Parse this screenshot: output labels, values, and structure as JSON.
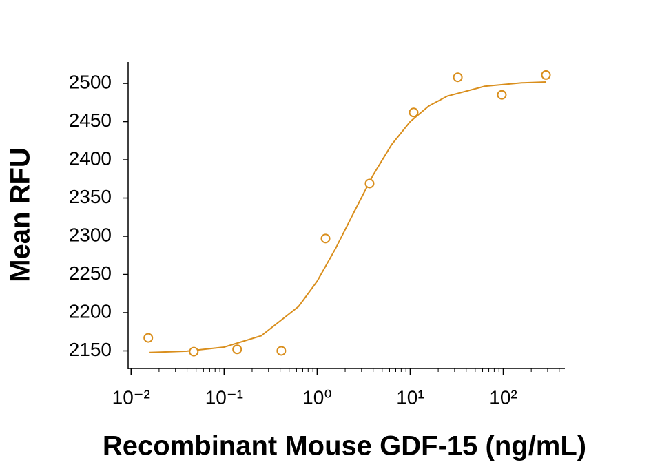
{
  "chart_data": {
    "type": "scatter",
    "xlabel": "Recombinant Mouse GDF-15 (ng/mL)",
    "ylabel": "Mean RFU",
    "xscale": "log",
    "color": "#d98e1c",
    "x": [
      0.0153,
      0.0472,
      0.138,
      0.412,
      1.23,
      3.66,
      10.9,
      32.5,
      96.6,
      288
    ],
    "values": [
      2167,
      2149,
      2152,
      2150,
      2297,
      2369,
      2462,
      2508,
      2485,
      2511
    ],
    "curve": {
      "x": [
        0.0158,
        0.0398,
        0.1,
        0.251,
        0.631,
        1,
        1.58,
        2.51,
        3.98,
        6.31,
        10,
        15.8,
        25.1,
        63.1,
        158,
        288
      ],
      "values": [
        2147.9,
        2149.6,
        2154.9,
        2169.8,
        2208.1,
        2241.2,
        2284.1,
        2332.5,
        2379.8,
        2419.8,
        2450,
        2470.3,
        2483.4,
        2496.2,
        2500.7,
        2501.9
      ]
    },
    "xlim": [
      0.0093,
      460
    ],
    "ylim": [
      2127,
      2528
    ],
    "xticks": [
      {
        "value": 0.01,
        "label": "10⁻²"
      },
      {
        "value": 0.1,
        "label": "10⁻¹"
      },
      {
        "value": 1,
        "label": "10⁰"
      },
      {
        "value": 10,
        "label": "10¹"
      },
      {
        "value": 100,
        "label": "10²"
      }
    ],
    "xminorticks": [
      0.02,
      0.03,
      0.04,
      0.05,
      0.06,
      0.07,
      0.08,
      0.09,
      0.2,
      0.3,
      0.4,
      0.5,
      0.6,
      0.7,
      0.8,
      0.9,
      2,
      3,
      4,
      5,
      6,
      7,
      8,
      9,
      20,
      30,
      40,
      50,
      60,
      70,
      80,
      90,
      200,
      300,
      400
    ],
    "yticks": [
      2150,
      2200,
      2250,
      2300,
      2350,
      2400,
      2450,
      2500
    ],
    "grid": false
  }
}
